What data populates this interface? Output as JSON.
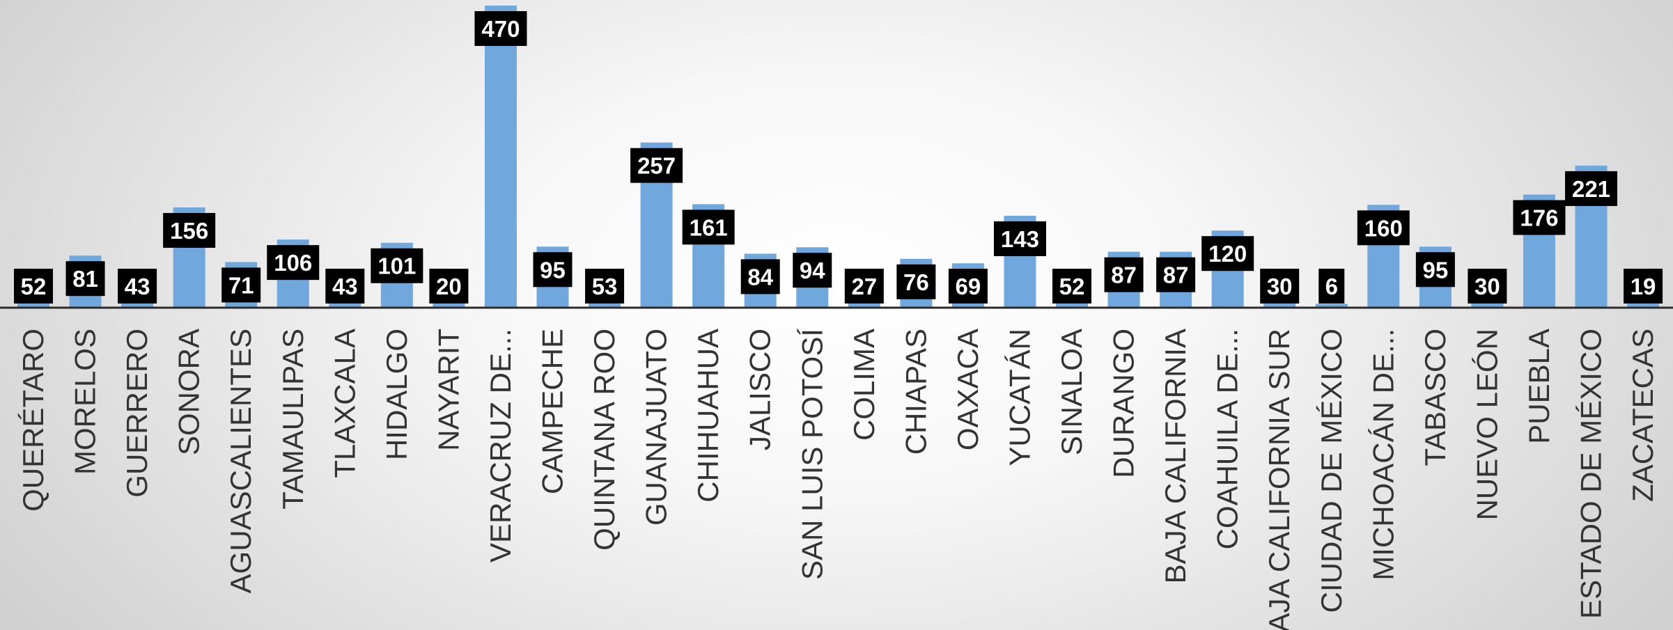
{
  "chart_data": {
    "type": "bar",
    "title": "",
    "xlabel": "",
    "ylabel": "",
    "ylim": [
      0,
      470
    ],
    "grid": false,
    "legend": "none",
    "colors": {
      "bar": "#70a7dc",
      "label_box": "#000000",
      "label_text": "#ffffff"
    },
    "categories": [
      "QUERÉTARO",
      "MORELOS",
      "GUERRERO",
      "SONORA",
      "AGUASCALIENTES",
      "TAMAULIPAS",
      "TLAXCALA",
      "HIDALGO",
      "NAYARIT",
      "VERACRUZ DE...",
      "CAMPECHE",
      "QUINTANA ROO",
      "GUANAJUATO",
      "CHIHUAHUA",
      "JALISCO",
      "SAN LUIS POTOSÍ",
      "COLIMA",
      "CHIAPAS",
      "OAXACA",
      "YUCATÁN",
      "SINALOA",
      "DURANGO",
      "BAJA CALIFORNIA",
      "COAHUILA DE...",
      "BAJA CALIFORNIA SUR",
      "CIUDAD DE MÉXICO",
      "MICHOACÁN DE...",
      "TABASCO",
      "NUEVO LEÓN",
      "PUEBLA",
      "ESTADO DE MÉXICO",
      "ZACATECAS"
    ],
    "values": [
      52,
      81,
      43,
      156,
      71,
      106,
      43,
      101,
      20,
      470,
      95,
      53,
      257,
      161,
      84,
      94,
      27,
      76,
      69,
      143,
      52,
      87,
      87,
      120,
      30,
      6,
      160,
      95,
      30,
      176,
      221,
      19
    ]
  }
}
